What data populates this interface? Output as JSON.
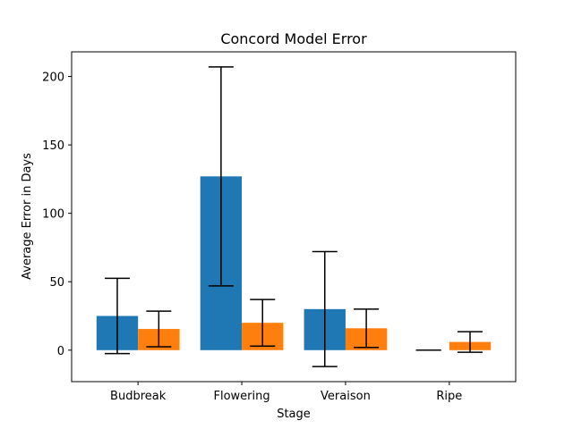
{
  "chart_data": {
    "type": "bar",
    "title": "Concord Model Error",
    "xlabel": "Stage",
    "ylabel": "Average Error in Days",
    "categories": [
      "Budbreak",
      "Flowering",
      "Veraison",
      "Ripe"
    ],
    "ylim": [
      -23,
      218
    ],
    "yticks": [
      0,
      50,
      100,
      150,
      200
    ],
    "grid": false,
    "series": [
      {
        "color": "#1f77b4",
        "values": [
          25,
          127,
          30,
          0
        ],
        "error": [
          27.5,
          80,
          42,
          0
        ]
      },
      {
        "color": "#ff7f0e",
        "values": [
          15.5,
          20,
          16,
          6
        ],
        "error": [
          13,
          17,
          14,
          7.5
        ]
      }
    ]
  }
}
